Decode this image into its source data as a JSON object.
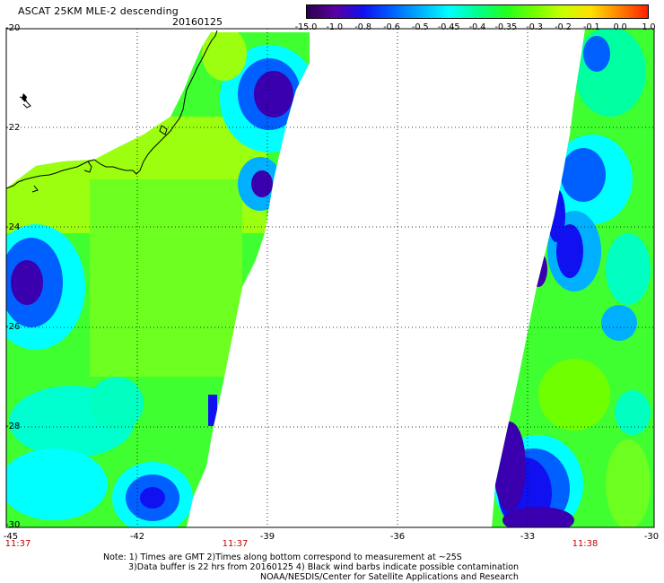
{
  "title": "ASCAT 25KM MLE-2 descending",
  "date": "20160125",
  "colorbar": {
    "labels": [
      "-15.0",
      "-1.0",
      "-0.8",
      "-0.6",
      "-0.5",
      "-0.45",
      "-0.4",
      "-0.35",
      "-0.3",
      "-0.2",
      "-0.1",
      "0.0",
      "1.0"
    ],
    "colors": [
      "#2a0050",
      "#5a00a0",
      "#1010f0",
      "#0060ff",
      "#00b0ff",
      "#00ffff",
      "#00ff90",
      "#20ff20",
      "#70ff00",
      "#c8ff00",
      "#ffe000",
      "#ff8000",
      "#ff2000"
    ]
  },
  "axes": {
    "x_ticks": [
      "-45",
      "-42",
      "-39",
      "-36",
      "-33",
      "-30"
    ],
    "y_ticks": [
      "-20",
      "-22",
      "-24",
      "-26",
      "-28",
      "-30"
    ],
    "lon_range": [
      -45,
      -30
    ],
    "lat_range": [
      -20,
      -30
    ]
  },
  "times": [
    "11:37",
    "11:37",
    "11:38"
  ],
  "notes": [
    "Note: 1) Times are GMT 2)Times along bottom correspond to measurement at ~25S",
    "3)Data buffer is 22 hrs from 20160125 4) Black wind barbs indicate possible contamination",
    "NOAA/NESDIS/Center for Satellite Applications and Research"
  ]
}
